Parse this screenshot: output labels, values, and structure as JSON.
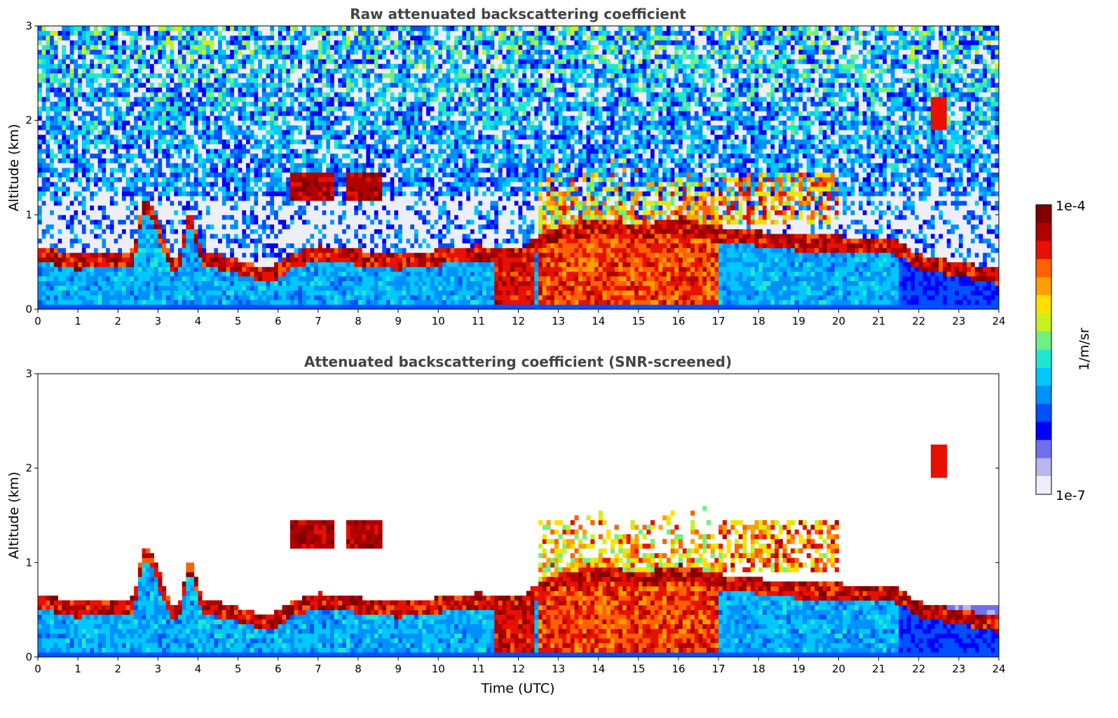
{
  "chart_data": [
    {
      "type": "heatmap",
      "title": "Raw attenuated backscattering coefficient",
      "xlabel": "",
      "ylabel": "Altitude (km)",
      "xlim": [
        0,
        24
      ],
      "ylim": [
        0,
        3
      ],
      "x_ticks": [
        0,
        1,
        2,
        3,
        4,
        5,
        6,
        7,
        8,
        9,
        10,
        11,
        12,
        13,
        14,
        15,
        16,
        17,
        18,
        19,
        20,
        21,
        22,
        23,
        24
      ],
      "y_ticks": [
        0,
        1,
        2,
        3
      ],
      "layers": [
        {
          "name": "boundary-layer top",
          "points": [
            [
              0,
              0.55
            ],
            [
              2.4,
              0.5
            ],
            [
              3.5,
              0.5
            ],
            [
              4.2,
              0.55
            ],
            [
              5.3,
              0.45
            ],
            [
              5.8,
              0.35
            ],
            [
              6.4,
              0.5
            ],
            [
              7.5,
              0.55
            ],
            [
              9,
              0.5
            ],
            [
              11,
              0.6
            ],
            [
              12,
              0.6
            ]
          ]
        },
        {
          "name": "elevated layer",
          "points": [
            [
              6.3,
              1.2
            ],
            [
              7.3,
              1.3
            ],
            [
              7.8,
              1.4
            ],
            [
              8.5,
              1.35
            ]
          ]
        },
        {
          "name": "convective plumes",
          "x_range": [
            12.5,
            17
          ],
          "top_km": 1.6
        },
        {
          "name": "upper clouds",
          "x_range": [
            17,
            20
          ],
          "top_km": 1.5
        },
        {
          "name": "isolated cloud",
          "x": 22.5,
          "alt_km": 2.1
        }
      ],
      "gap": {
        "x_range": [
          2.45,
          2.55
        ]
      }
    },
    {
      "type": "heatmap",
      "title": "Attenuated backscattering coefficient (SNR-screened)",
      "xlabel": "Time (UTC)",
      "ylabel": "Altitude (km)",
      "xlim": [
        0,
        24
      ],
      "ylim": [
        0,
        3
      ],
      "x_ticks": [
        0,
        1,
        2,
        3,
        4,
        5,
        6,
        7,
        8,
        9,
        10,
        11,
        12,
        13,
        14,
        15,
        16,
        17,
        18,
        19,
        20,
        21,
        22,
        23,
        24
      ],
      "y_ticks": [
        0,
        1,
        2,
        3
      ],
      "gap": {
        "x_range": [
          2.45,
          2.55
        ]
      }
    }
  ],
  "colorbar": {
    "max_label": "1e-4",
    "min_label": "1e-7",
    "unit_label": "1/m/sr",
    "colors": [
      "#eeeef8",
      "#b8b8ee",
      "#7070ee",
      "#0000ff",
      "#0050ff",
      "#0090ff",
      "#00c8ff",
      "#20e8d0",
      "#70f080",
      "#c8f020",
      "#ffe000",
      "#ffa000",
      "#ff6000",
      "#e81000",
      "#b00000",
      "#800000"
    ]
  }
}
